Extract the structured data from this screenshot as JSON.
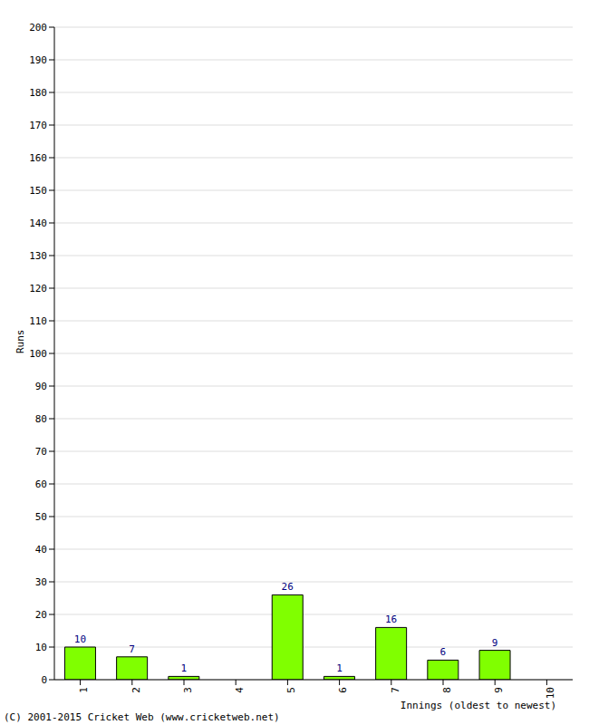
{
  "chart_data": {
    "type": "bar",
    "x_label": "Innings (oldest to newest)",
    "y_label": "Runs",
    "annotations": [
      "(C) 2001-2015 Cricket Web (www.cricketweb.net)"
    ],
    "categories": [
      "1",
      "2",
      "3",
      "4",
      "5",
      "6",
      "7",
      "8",
      "9",
      "10"
    ],
    "values": [
      10,
      7,
      1,
      0,
      26,
      1,
      16,
      6,
      9,
      0
    ],
    "color": "#80ff00",
    "ylim": [
      0,
      200
    ],
    "yticks": [
      0,
      10,
      20,
      30,
      40,
      50,
      60,
      70,
      80,
      90,
      100,
      110,
      120,
      130,
      140,
      150,
      160,
      170,
      180,
      190,
      200
    ],
    "grid": true,
    "data_labels": true
  }
}
